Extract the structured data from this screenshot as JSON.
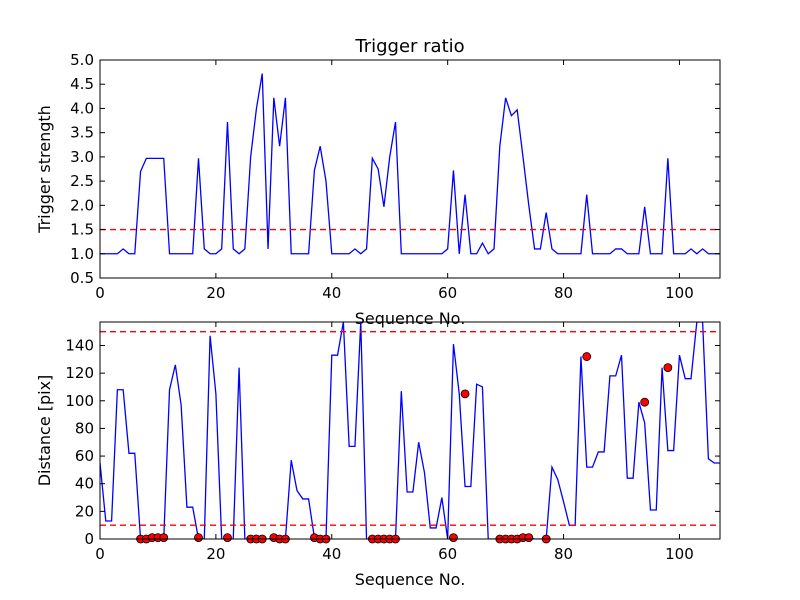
{
  "chart_data": [
    {
      "type": "line",
      "title": "Trigger ratio",
      "xlabel": "Sequence No.",
      "ylabel": "Trigger strength",
      "xlim": [
        0,
        107
      ],
      "ylim": [
        0.5,
        5.0
      ],
      "xticks": [
        0,
        20,
        40,
        60,
        80,
        100
      ],
      "yticks": [
        0.5,
        1.0,
        1.5,
        2.0,
        2.5,
        3.0,
        3.5,
        4.0,
        4.5,
        5.0
      ],
      "xtick_labels": [
        "0",
        "20",
        "40",
        "60",
        "80",
        "100"
      ],
      "ytick_labels": [
        "0.5",
        "1.0",
        "1.5",
        "2.0",
        "2.5",
        "3.0",
        "3.5",
        "4.0",
        "4.5",
        "5.0"
      ],
      "grid": false,
      "colors": {
        "line": "#0000ff",
        "threshold": "#ff0000"
      },
      "threshold": 1.5,
      "series": [
        {
          "x": [
            0,
            1,
            2,
            3,
            4,
            5,
            6,
            7,
            8,
            9,
            10,
            11,
            12,
            13,
            14,
            15,
            16,
            17,
            18,
            19,
            20,
            21,
            22,
            23,
            24,
            25,
            26,
            27,
            28,
            29,
            30,
            31,
            32,
            33,
            34,
            35,
            36,
            37,
            38,
            39,
            40,
            41,
            42,
            43,
            44,
            45,
            46,
            47,
            48,
            49,
            50,
            51,
            52,
            53,
            54,
            55,
            56,
            57,
            58,
            59,
            60,
            61,
            62,
            63,
            64,
            65,
            66,
            67,
            68,
            69,
            70,
            71,
            72,
            73,
            74,
            75,
            76,
            77,
            78,
            79,
            80,
            81,
            82,
            83,
            84,
            85,
            86,
            87,
            88,
            89,
            90,
            91,
            92,
            93,
            94,
            95,
            96,
            97,
            98,
            99,
            100,
            101,
            102,
            103,
            104,
            105,
            106,
            107
          ],
          "y": [
            1.0,
            1.0,
            1.0,
            1.0,
            1.1,
            1.0,
            1.0,
            2.7,
            2.97,
            2.97,
            2.97,
            2.97,
            1.0,
            1.0,
            1.0,
            1.0,
            1.0,
            2.97,
            1.1,
            1.0,
            1.0,
            1.1,
            3.72,
            1.1,
            1.0,
            1.1,
            3.0,
            4.0,
            4.72,
            1.1,
            4.22,
            3.22,
            4.22,
            1.0,
            1.0,
            1.0,
            1.0,
            2.72,
            3.22,
            2.5,
            1.0,
            1.0,
            1.0,
            1.0,
            1.1,
            1.0,
            1.1,
            2.97,
            2.75,
            1.97,
            3.0,
            3.72,
            1.0,
            1.0,
            1.0,
            1.0,
            1.0,
            1.0,
            1.0,
            1.0,
            1.1,
            2.72,
            1.0,
            2.22,
            1.0,
            1.0,
            1.22,
            1.0,
            1.1,
            3.22,
            4.22,
            3.85,
            3.97,
            3.0,
            2.0,
            1.1,
            1.1,
            1.85,
            1.1,
            1.0,
            1.0,
            1.0,
            1.0,
            1.0,
            2.22,
            1.0,
            1.0,
            1.0,
            1.0,
            1.1,
            1.1,
            1.0,
            1.0,
            1.0,
            1.97,
            1.0,
            1.0,
            1.0,
            2.97,
            1.0,
            1.0,
            1.0,
            1.1,
            1.0,
            1.1,
            1.0,
            1.0,
            1.0
          ]
        }
      ]
    },
    {
      "type": "line",
      "title": "",
      "xlabel": "Sequence No.",
      "ylabel": "Distance [pix]",
      "xlim": [
        0,
        107
      ],
      "ylim": [
        0,
        157
      ],
      "xticks": [
        0,
        20,
        40,
        60,
        80,
        100
      ],
      "yticks": [
        0,
        20,
        40,
        60,
        80,
        100,
        120,
        140
      ],
      "xtick_labels": [
        "0",
        "20",
        "40",
        "60",
        "80",
        "100"
      ],
      "ytick_labels": [
        "0",
        "20",
        "40",
        "60",
        "80",
        "100",
        "120",
        "140"
      ],
      "grid": false,
      "colors": {
        "line": "#0000ff",
        "threshold": "#ff0000",
        "marker": "#ff0000"
      },
      "thresholds": [
        10,
        150
      ],
      "series": [
        {
          "x": [
            0,
            1,
            2,
            3,
            4,
            5,
            6,
            7,
            8,
            9,
            10,
            11,
            12,
            13,
            14,
            15,
            16,
            17,
            18,
            19,
            20,
            21,
            22,
            23,
            24,
            25,
            26,
            27,
            28,
            29,
            30,
            31,
            32,
            33,
            34,
            35,
            36,
            37,
            38,
            39,
            40,
            41,
            42,
            43,
            44,
            45,
            46,
            47,
            48,
            49,
            50,
            51,
            52,
            53,
            54,
            55,
            56,
            57,
            58,
            59,
            60,
            61,
            62,
            63,
            64,
            65,
            66,
            67,
            68,
            69,
            70,
            71,
            72,
            73,
            74,
            75,
            76,
            77,
            78,
            79,
            80,
            81,
            82,
            83,
            84,
            85,
            86,
            87,
            88,
            89,
            90,
            91,
            92,
            93,
            94,
            95,
            96,
            97,
            98,
            99,
            100,
            101,
            102,
            103,
            104,
            105,
            106,
            107
          ],
          "y": [
            55,
            13,
            13,
            108,
            108,
            62,
            62,
            0,
            0,
            0,
            0,
            0,
            108,
            126,
            97,
            23,
            23,
            0,
            0,
            147,
            105,
            0,
            0,
            0,
            124,
            0,
            0,
            0,
            0,
            0,
            1,
            0,
            0,
            57,
            35,
            29,
            29,
            1,
            0,
            0,
            133,
            133,
            157,
            67,
            67,
            157,
            0,
            0,
            0,
            0,
            0,
            0,
            107,
            34,
            34,
            70,
            48,
            8,
            8,
            30,
            0,
            141,
            105,
            38,
            38,
            112,
            110,
            0,
            0,
            0,
            0,
            0,
            0,
            1,
            1,
            0,
            0,
            0,
            52,
            43,
            27,
            10,
            10,
            132,
            52,
            52,
            63,
            63,
            118,
            118,
            133,
            44,
            44,
            99,
            84,
            21,
            21,
            124,
            64,
            64,
            133,
            116,
            116,
            157,
            157,
            58,
            55,
            55
          ]
        },
        {
          "name": "",
          "type": "scatter",
          "x": [
            7,
            8,
            9,
            10,
            11,
            17,
            22,
            26,
            27,
            28,
            30,
            31,
            32,
            37,
            38,
            39,
            47,
            48,
            49,
            50,
            51,
            61,
            63,
            69,
            70,
            71,
            72,
            73,
            74,
            77,
            84,
            94,
            98
          ],
          "y": [
            0,
            0,
            1,
            1,
            1,
            1,
            1,
            0,
            0,
            0,
            1,
            0,
            0,
            1,
            0,
            0,
            0,
            0,
            0,
            0,
            0,
            1,
            105,
            0,
            0,
            0,
            0,
            1,
            1,
            0,
            132,
            99,
            124
          ]
        }
      ]
    }
  ]
}
